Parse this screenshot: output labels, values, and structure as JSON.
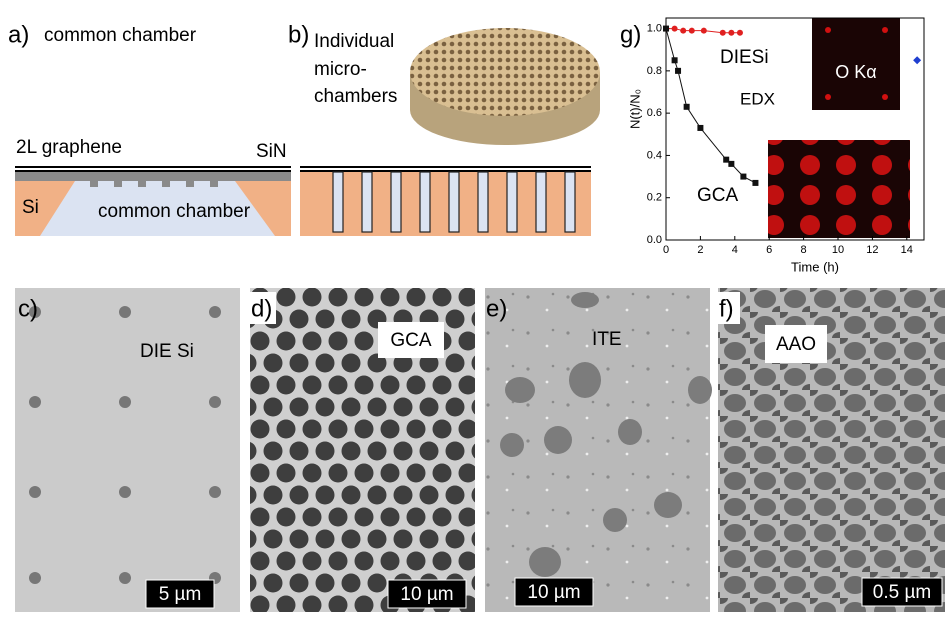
{
  "panels": {
    "a": {
      "label": "a)",
      "title": "common chamber",
      "layer_labels": [
        "2L graphene",
        "SiN",
        "Si",
        "common chamber"
      ]
    },
    "b": {
      "label": "b)",
      "title_lines": [
        "Individual",
        "micro-",
        "chambers"
      ]
    },
    "c": {
      "label": "c)",
      "name": "DIE Si",
      "scale": "5 µm"
    },
    "d": {
      "label": "d)",
      "name": "GCA",
      "scale": "10 µm"
    },
    "e": {
      "label": "e)",
      "name": "ITE",
      "scale": "10 µm"
    },
    "f": {
      "label": "f)",
      "name": "AAO",
      "scale": "0.5 µm"
    }
  },
  "chart_data": {
    "type": "scatter",
    "panel_label": "g)",
    "inset_label": "O Kα",
    "xlabel": "Time (h)",
    "ylabel": "N(t)/N₀",
    "xlim": [
      0,
      15
    ],
    "xticks": [
      0,
      2,
      4,
      6,
      8,
      10,
      12,
      14
    ],
    "ylim": [
      0,
      1.05
    ],
    "yticks": [
      {
        "value": 0,
        "label": "0.0"
      },
      {
        "value": 0.2,
        "label": "0.2"
      },
      {
        "value": 0.4,
        "label": "0.4"
      },
      {
        "value": 0.6,
        "label": "0.6"
      },
      {
        "value": 0.8,
        "label": "0.8"
      },
      {
        "value": 1,
        "label": "1.0"
      }
    ],
    "series": [
      {
        "name": "DIESi",
        "color": "#e02020",
        "marker": "circle",
        "x": [
          0,
          0.5,
          1,
          1.5,
          2.2,
          3.3,
          3.8,
          4.3
        ],
        "values": [
          1.0,
          1.0,
          0.99,
          0.99,
          0.99,
          0.98,
          0.98,
          0.98
        ]
      },
      {
        "name": "EDX",
        "color": "#1f3fd0",
        "marker": "diamond",
        "x": [
          14.6
        ],
        "values": [
          0.85
        ]
      },
      {
        "name": "GCA",
        "color": "#111111",
        "marker": "square",
        "x": [
          0,
          0.5,
          0.7,
          1.2,
          2,
          3.5,
          3.8,
          4.5,
          5.2
        ],
        "values": [
          1.0,
          0.85,
          0.8,
          0.63,
          0.53,
          0.38,
          0.36,
          0.3,
          0.27
        ]
      }
    ]
  }
}
